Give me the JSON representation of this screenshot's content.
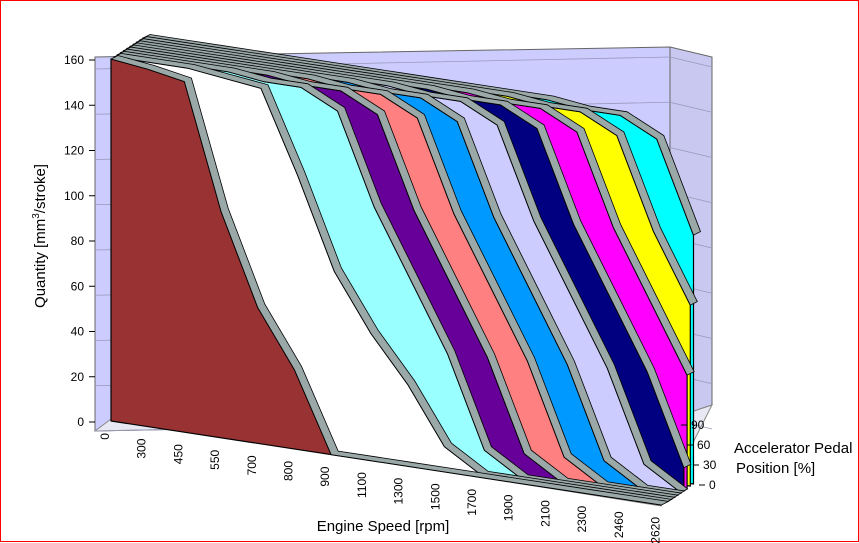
{
  "chart_data": {
    "type": "area",
    "subtype": "3d-ribbon",
    "title": "",
    "xlabel": "Engine Speed [rpm]",
    "ylabel_prefix": "Quantity [mm",
    "ylabel_sup": "3",
    "ylabel_suffix": "/stroke]",
    "zlabel_line1": "Accelerator Pedal",
    "zlabel_line2": "Position [%]",
    "ylim": [
      0,
      160
    ],
    "y_ticks": [
      "0",
      "20",
      "40",
      "60",
      "80",
      "100",
      "120",
      "140",
      "160"
    ],
    "z_ticks": [
      "0",
      "30",
      "60",
      "90"
    ],
    "categories": [
      "0",
      "300",
      "450",
      "550",
      "700",
      "800",
      "900",
      "1100",
      "1300",
      "1500",
      "1700",
      "1900",
      "2100",
      "2300",
      "2460",
      "2620"
    ],
    "grid": true,
    "series": [
      {
        "color": "#993333",
        "values": [
          160,
          158,
          155,
          100,
          60,
          35,
          0,
          0,
          0,
          0,
          0,
          0,
          0,
          0,
          0,
          0
        ]
      },
      {
        "color": "#ffffff",
        "values": [
          160,
          160,
          160,
          158,
          156,
          120,
          80,
          55,
          35,
          10,
          0,
          0,
          0,
          0,
          0,
          0
        ]
      },
      {
        "color": "#99ffff",
        "values": [
          160,
          160,
          160,
          160,
          158,
          158,
          150,
          110,
          80,
          50,
          10,
          0,
          0,
          0,
          0,
          0
        ]
      },
      {
        "color": "#660099",
        "values": [
          160,
          160,
          160,
          160,
          160,
          158,
          158,
          150,
          110,
          80,
          50,
          10,
          0,
          0,
          0,
          0
        ]
      },
      {
        "color": "#ff8080",
        "values": [
          160,
          160,
          160,
          160,
          160,
          160,
          158,
          158,
          150,
          110,
          80,
          50,
          10,
          0,
          0,
          0
        ]
      },
      {
        "color": "#0099ff",
        "values": [
          160,
          160,
          160,
          160,
          160,
          160,
          160,
          158,
          158,
          150,
          110,
          80,
          50,
          10,
          0,
          0
        ]
      },
      {
        "color": "#ccccff",
        "values": [
          160,
          160,
          160,
          160,
          160,
          160,
          160,
          160,
          158,
          158,
          150,
          110,
          80,
          50,
          10,
          0
        ]
      },
      {
        "color": "#000080",
        "values": [
          160,
          160,
          160,
          160,
          160,
          160,
          160,
          160,
          160,
          158,
          158,
          150,
          110,
          80,
          50,
          10
        ]
      },
      {
        "color": "#ff00ff",
        "values": [
          160,
          160,
          160,
          160,
          160,
          160,
          160,
          160,
          160,
          160,
          158,
          158,
          150,
          110,
          80,
          50
        ]
      },
      {
        "color": "#ffff00",
        "values": [
          160,
          160,
          160,
          160,
          160,
          160,
          160,
          160,
          160,
          160,
          160,
          158,
          158,
          150,
          110,
          80
        ]
      },
      {
        "color": "#00ffff",
        "values": [
          160,
          160,
          160,
          160,
          160,
          160,
          160,
          160,
          160,
          160,
          160,
          160,
          158,
          158,
          150,
          110
        ]
      }
    ],
    "colors": {
      "wall_back": "#ccccff",
      "wall_side": "#c8c8f0",
      "ribbon_top": "#9aa8a8",
      "border": "#ff0000"
    }
  }
}
